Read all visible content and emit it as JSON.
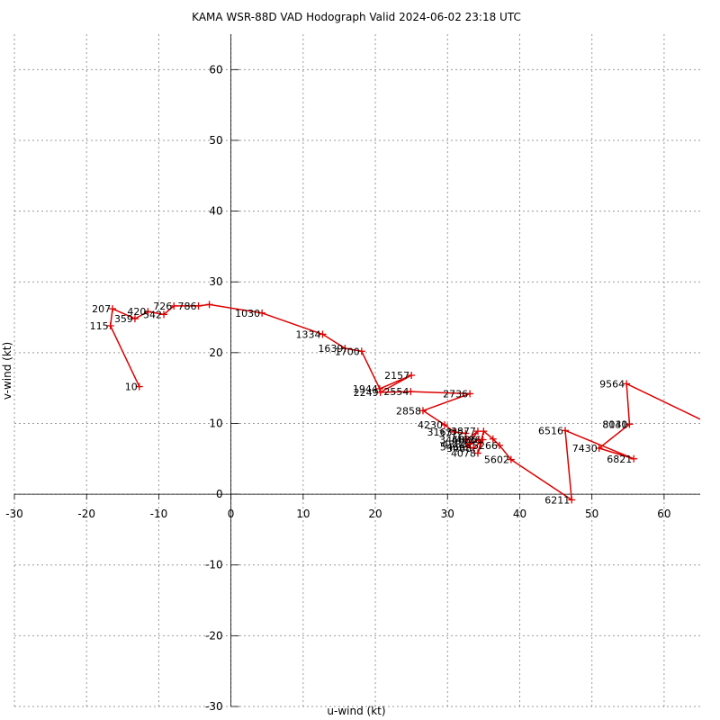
{
  "chart_data": {
    "type": "line",
    "title": "KAMA WSR-88D VAD Hodograph Valid 2024-06-02 23:18 UTC",
    "xlabel": "u-wind (kt)",
    "ylabel": "v-wind (kt)",
    "xlim": [
      -30,
      65
    ],
    "ylim": [
      -30,
      65
    ],
    "xticks": [
      -30,
      -20,
      -10,
      0,
      10,
      20,
      30,
      40,
      50,
      60
    ],
    "yticks": [
      -30,
      -20,
      -10,
      0,
      10,
      20,
      30,
      40,
      50,
      60
    ],
    "grid": true,
    "colors": {
      "line": "#dd0000",
      "grid": "#999999",
      "axis": "#000000"
    },
    "series": [
      {
        "points": [
          {
            "u": -12.7,
            "v": 15.2,
            "label": "10"
          },
          {
            "u": -16.7,
            "v": 23.8,
            "label": "115"
          },
          {
            "u": -16.4,
            "v": 26.2,
            "label": "207"
          },
          {
            "u": -13.3,
            "v": 24.8,
            "label": "359"
          },
          {
            "u": -11.5,
            "v": 25.8,
            "label": "420"
          },
          {
            "u": -9.3,
            "v": 25.4,
            "label": "542"
          },
          {
            "u": -7.9,
            "v": 26.6,
            "label": "726"
          },
          {
            "u": -4.5,
            "v": 26.6,
            "label": "786"
          },
          {
            "u": -3.0,
            "v": 26.8,
            "label": ""
          },
          {
            "u": 4.3,
            "v": 25.6,
            "label": "1030"
          },
          {
            "u": 12.7,
            "v": 22.6,
            "label": "1334"
          },
          {
            "u": 15.8,
            "v": 20.6,
            "label": "1639"
          },
          {
            "u": 18.1,
            "v": 20.2,
            "label": "1700"
          },
          {
            "u": 20.6,
            "v": 14.9,
            "label": "1944"
          },
          {
            "u": 25.0,
            "v": 16.8,
            "label": "2157"
          },
          {
            "u": 20.7,
            "v": 14.4,
            "label": "2249"
          },
          {
            "u": 24.9,
            "v": 14.5,
            "label": "2554"
          },
          {
            "u": 33.1,
            "v": 14.2,
            "label": "2736"
          },
          {
            "u": 26.6,
            "v": 11.8,
            "label": "2858"
          },
          {
            "u": 29.6,
            "v": 9.8,
            "label": "4230"
          },
          {
            "u": 30.9,
            "v": 8.8,
            "label": "3163"
          },
          {
            "u": 32.5,
            "v": 8.6,
            "label": "3772"
          },
          {
            "u": 32.6,
            "v": 7.7,
            "label": "3468"
          },
          {
            "u": 34.2,
            "v": 8.9,
            "label": "3877"
          },
          {
            "u": 33.0,
            "v": 7.1,
            "label": "4383"
          },
          {
            "u": 34.3,
            "v": 7.7,
            "label": "4686"
          },
          {
            "u": 32.7,
            "v": 6.7,
            "label": "5466"
          },
          {
            "u": 33.6,
            "v": 6.5,
            "label": "3488"
          },
          {
            "u": 34.9,
            "v": 7.7,
            "label": "4686"
          },
          {
            "u": 34.2,
            "v": 5.8,
            "label": "4078"
          },
          {
            "u": 35.0,
            "v": 8.9,
            "label": ""
          },
          {
            "u": 36.3,
            "v": 7.8,
            "label": ""
          },
          {
            "u": 37.2,
            "v": 6.9,
            "label": "5266"
          },
          {
            "u": 38.8,
            "v": 4.9,
            "label": "5602"
          },
          {
            "u": 47.2,
            "v": -0.8,
            "label": "6211"
          },
          {
            "u": 46.3,
            "v": 9.0,
            "label": "6516"
          },
          {
            "u": 55.8,
            "v": 5.0,
            "label": "6821"
          },
          {
            "u": 51.0,
            "v": 6.5,
            "label": "7430"
          },
          {
            "u": 55.2,
            "v": 9.9,
            "label": "8131"
          },
          {
            "u": 55.2,
            "v": 9.9,
            "label": "8040"
          },
          {
            "u": 54.8,
            "v": 15.6,
            "label": "9564"
          },
          {
            "u": 65.0,
            "v": 10.6,
            "label": ""
          }
        ]
      }
    ]
  }
}
